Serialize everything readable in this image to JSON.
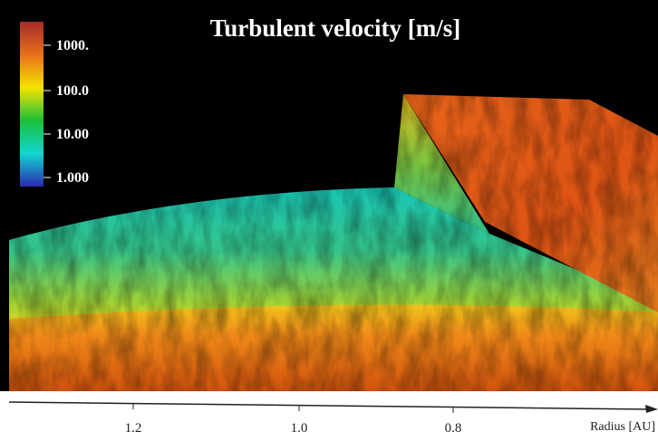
{
  "title": "Turbulent velocity [m/s]",
  "colorbar": {
    "labels": [
      "1000.",
      "100.0",
      "10.00",
      "1.000"
    ]
  },
  "axis": {
    "label": "Radius [AU]",
    "ticks": [
      "1.2",
      "1.0",
      "0.8"
    ]
  }
}
